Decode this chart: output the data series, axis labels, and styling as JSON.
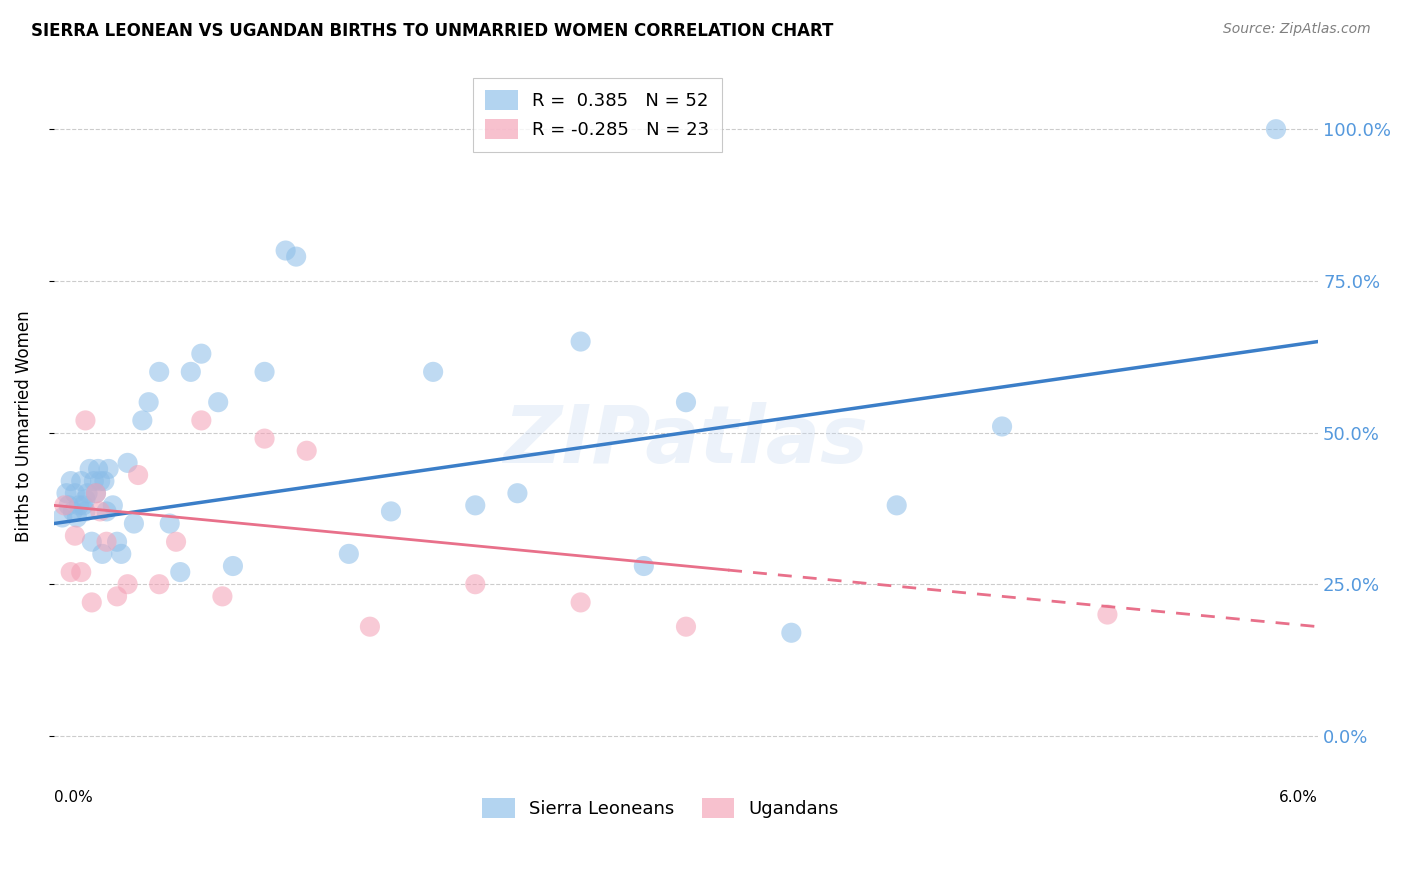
{
  "title": "SIERRA LEONEAN VS UGANDAN BIRTHS TO UNMARRIED WOMEN CORRELATION CHART",
  "source": "Source: ZipAtlas.com",
  "ylabel": "Births to Unmarried Women",
  "ytick_labels": [
    "0.0%",
    "25.0%",
    "50.0%",
    "75.0%",
    "100.0%"
  ],
  "ytick_values": [
    0,
    25,
    50,
    75,
    100
  ],
  "xlim": [
    0.0,
    6.0
  ],
  "ylim": [
    -8,
    110
  ],
  "blue_color": "#8BBDE8",
  "pink_color": "#F4A0B5",
  "blue_line_color": "#3B7EC8",
  "pink_line_color": "#E8708A",
  "watermark": "ZIPatlas",
  "r_sl": 0.385,
  "n_sl": 52,
  "r_ug": -0.285,
  "n_ug": 23,
  "sl_x": [
    0.04,
    0.06,
    0.07,
    0.08,
    0.09,
    0.1,
    0.11,
    0.12,
    0.13,
    0.14,
    0.15,
    0.15,
    0.16,
    0.17,
    0.18,
    0.19,
    0.2,
    0.21,
    0.22,
    0.23,
    0.24,
    0.25,
    0.26,
    0.28,
    0.3,
    0.32,
    0.35,
    0.38,
    0.42,
    0.45,
    0.5,
    0.55,
    0.6,
    0.65,
    0.7,
    0.78,
    0.85,
    1.0,
    1.1,
    1.15,
    1.4,
    1.6,
    1.8,
    2.0,
    2.2,
    2.5,
    2.8,
    3.0,
    3.5,
    4.0,
    4.5,
    5.8
  ],
  "sl_y": [
    36,
    40,
    38,
    42,
    37,
    40,
    36,
    38,
    42,
    38,
    37,
    39,
    40,
    44,
    32,
    42,
    40,
    44,
    42,
    30,
    42,
    37,
    44,
    38,
    32,
    30,
    45,
    35,
    52,
    55,
    60,
    35,
    27,
    60,
    63,
    55,
    28,
    60,
    80,
    79,
    30,
    37,
    60,
    38,
    40,
    65,
    28,
    55,
    17,
    38,
    51,
    100
  ],
  "ug_x": [
    0.05,
    0.08,
    0.1,
    0.13,
    0.15,
    0.18,
    0.2,
    0.22,
    0.25,
    0.3,
    0.35,
    0.4,
    0.5,
    0.58,
    0.7,
    0.8,
    1.0,
    1.2,
    1.5,
    2.0,
    2.5,
    3.0,
    5.0
  ],
  "ug_y": [
    38,
    27,
    33,
    27,
    52,
    22,
    40,
    37,
    32,
    23,
    25,
    43,
    25,
    32,
    52,
    23,
    49,
    47,
    18,
    25,
    22,
    18,
    20
  ],
  "pink_solid_end_x": 3.2,
  "legend_bottom": [
    "Sierra Leoneans",
    "Ugandans"
  ]
}
